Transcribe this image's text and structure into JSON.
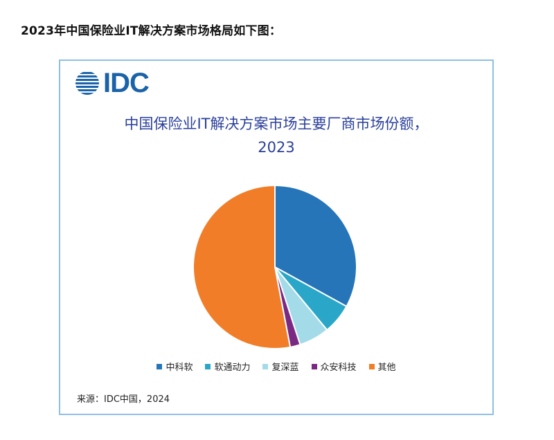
{
  "heading": "2023年中国保险业IT解决方案市场格局如下图：",
  "card": {
    "logo_text": "IDC",
    "title_line1": "中国保险业IT解决方案市场主要厂商市场份额，",
    "title_line2": "2023",
    "source": "来源：IDC中国，2024"
  },
  "chart_data": {
    "type": "pie",
    "title": "中国保险业IT解决方案市场主要厂商市场份额，2023",
    "start_angle_deg": 0,
    "direction": "clockwise",
    "legend_position": "bottom",
    "categories": [
      "中科软",
      "软通动力",
      "复深蓝",
      "众安科技",
      "其他"
    ],
    "values": [
      33,
      6,
      6,
      2,
      53
    ],
    "unit": "%",
    "colors": [
      "#2575b8",
      "#2aa7c8",
      "#a4dbe9",
      "#7b2a84",
      "#f17d28"
    ]
  },
  "colors": {
    "brand": "#1b63a8",
    "title": "#2a3f9b",
    "border": "#8ec0df"
  }
}
